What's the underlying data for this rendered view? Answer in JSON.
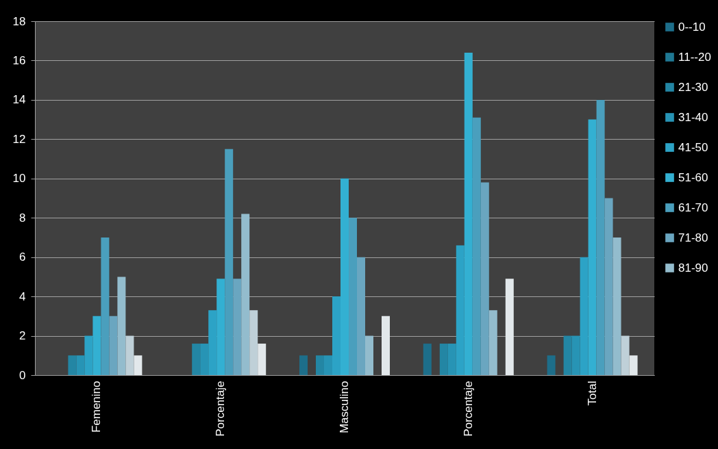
{
  "chart_data": {
    "type": "bar",
    "categories": [
      "Femenino",
      "Porcentaje",
      "Masculino",
      "Porcentaje",
      "Total"
    ],
    "series": [
      {
        "name": "0--10",
        "color": "#1d6e8a",
        "values": [
          0,
          0,
          1,
          1.6,
          1
        ]
      },
      {
        "name": "11--20",
        "color": "#1f7893",
        "values": [
          0,
          0,
          0,
          0,
          0
        ]
      },
      {
        "name": "21-30",
        "color": "#2386a4",
        "values": [
          1,
          1.6,
          1,
          1.6,
          2
        ]
      },
      {
        "name": "31-40",
        "color": "#2794b5",
        "values": [
          1,
          1.6,
          1,
          1.6,
          2
        ]
      },
      {
        "name": "41-50",
        "color": "#2ca3c6",
        "values": [
          2,
          3.3,
          4,
          6.6,
          6
        ]
      },
      {
        "name": "51-60",
        "color": "#33b0d2",
        "values": [
          3,
          4.9,
          10,
          16.4,
          13
        ]
      },
      {
        "name": "61-70",
        "color": "#4a9fbd",
        "values": [
          7,
          11.5,
          8,
          13.1,
          14
        ]
      },
      {
        "name": "71-80",
        "color": "#6aa6c0",
        "values": [
          3,
          4.9,
          6,
          9.8,
          9
        ]
      },
      {
        "name": "81-90",
        "color": "#93bccd",
        "values": [
          5,
          8.2,
          2,
          3.3,
          7
        ]
      },
      {
        "color": "#bfd0d8",
        "values": [
          2,
          3.3,
          0,
          0,
          2
        ]
      },
      {
        "color": "#e2e8eb",
        "values": [
          1,
          1.6,
          3,
          4.9,
          1
        ]
      }
    ],
    "ylim": [
      0,
      18
    ],
    "yticks": [
      0,
      2,
      4,
      6,
      8,
      10,
      12,
      14,
      16,
      18
    ],
    "grid": "y",
    "legend": "right"
  }
}
